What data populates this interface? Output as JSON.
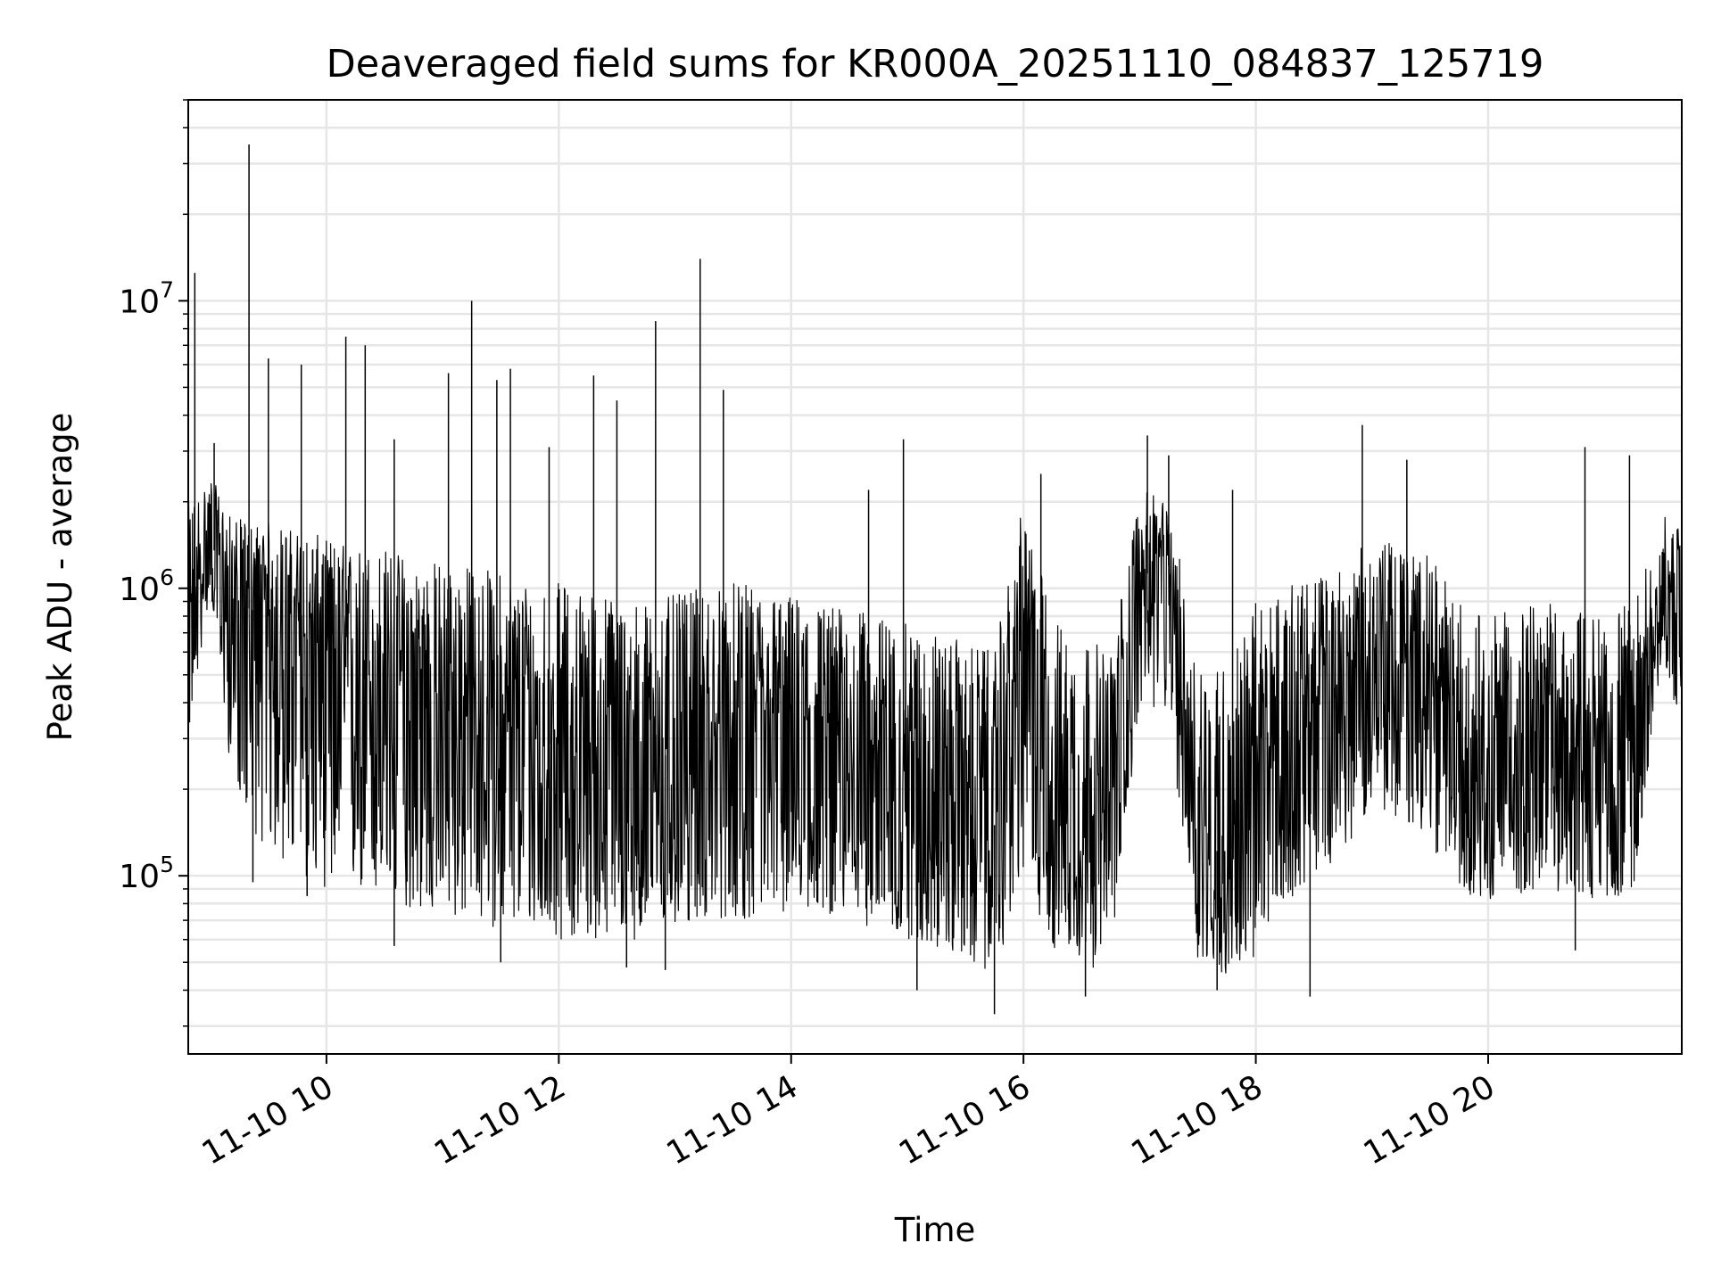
{
  "chart_data": {
    "type": "line",
    "title": "Deaveraged field sums for KR000A_20251110_084837_125719",
    "xlabel": "Time",
    "ylabel": "Peak ADU - average",
    "x_axis": {
      "type": "time",
      "range": [
        "2025-11-10 08:48:37",
        "2025-11-10 21:40:00"
      ],
      "ticks": [
        {
          "value": "2025-11-10 10:00",
          "label": "11-10 10"
        },
        {
          "value": "2025-11-10 12:00",
          "label": "11-10 12"
        },
        {
          "value": "2025-11-10 14:00",
          "label": "11-10 14"
        },
        {
          "value": "2025-11-10 16:00",
          "label": "11-10 16"
        },
        {
          "value": "2025-11-10 18:00",
          "label": "11-10 18"
        },
        {
          "value": "2025-11-10 20:00",
          "label": "11-10 20"
        }
      ]
    },
    "y_axis": {
      "scale": "log",
      "range": [
        24000,
        50000000
      ],
      "ticks": [
        {
          "value": 100000,
          "base": "10",
          "exp": "5"
        },
        {
          "value": 1000000,
          "base": "10",
          "exp": "6"
        },
        {
          "value": 10000000,
          "base": "10",
          "exp": "7"
        }
      ]
    },
    "grid": true,
    "line_color": "#000000",
    "grid_color": "#e6e6e6",
    "series": [
      {
        "x": [
          "2025-11-10 08:48",
          "2025-11-10 09:00",
          "2025-11-10 09:10",
          "2025-11-10 09:20",
          "2025-11-10 09:30",
          "2025-11-10 09:45",
          "2025-11-10 10:00",
          "2025-11-10 10:15",
          "2025-11-10 10:30",
          "2025-11-10 10:45",
          "2025-11-10 11:00",
          "2025-11-10 11:15",
          "2025-11-10 11:30",
          "2025-11-10 11:45",
          "2025-11-10 12:00",
          "2025-11-10 12:15",
          "2025-11-10 12:30",
          "2025-11-10 12:45",
          "2025-11-10 13:00",
          "2025-11-10 13:15",
          "2025-11-10 13:30",
          "2025-11-10 13:45",
          "2025-11-10 14:00",
          "2025-11-10 14:15",
          "2025-11-10 14:30",
          "2025-11-10 14:45",
          "2025-11-10 15:00",
          "2025-11-10 15:15",
          "2025-11-10 15:30",
          "2025-11-10 15:45",
          "2025-11-10 16:00",
          "2025-11-10 16:15",
          "2025-11-10 16:30",
          "2025-11-10 16:45",
          "2025-11-10 17:00",
          "2025-11-10 17:15",
          "2025-11-10 17:30",
          "2025-11-10 17:45",
          "2025-11-10 18:00",
          "2025-11-10 18:15",
          "2025-11-10 18:30",
          "2025-11-10 18:45",
          "2025-11-10 19:00",
          "2025-11-10 19:15",
          "2025-11-10 19:30",
          "2025-11-10 19:45",
          "2025-11-10 20:00",
          "2025-11-10 20:15",
          "2025-11-10 20:30",
          "2025-11-10 20:45",
          "2025-11-10 21:00",
          "2025-11-10 21:15",
          "2025-11-10 21:30",
          "2025-11-10 21:40"
        ],
        "median": [
          600000,
          1500000,
          900000,
          850000,
          800000,
          700000,
          600000,
          500000,
          450000,
          400000,
          380000,
          350000,
          330000,
          300000,
          280000,
          270000,
          260000,
          250000,
          270000,
          280000,
          300000,
          320000,
          330000,
          300000,
          280000,
          260000,
          250000,
          230000,
          200000,
          150000,
          700000,
          250000,
          180000,
          150000,
          1100000,
          1200000,
          150000,
          110000,
          200000,
          300000,
          350000,
          400000,
          550000,
          500000,
          450000,
          300000,
          250000,
          280000,
          300000,
          280000,
          260000,
          300000,
          1000000,
          900000
        ],
        "low": [
          280000,
          1000000,
          250000,
          150000,
          120000,
          100000,
          90000,
          85000,
          80000,
          75000,
          70000,
          70000,
          65000,
          65000,
          60000,
          60000,
          60000,
          60000,
          65000,
          70000,
          70000,
          70000,
          75000,
          75000,
          70000,
          65000,
          60000,
          55000,
          50000,
          45000,
          100000,
          55000,
          50000,
          45000,
          400000,
          350000,
          50000,
          45000,
          50000,
          80000,
          100000,
          120000,
          180000,
          150000,
          130000,
          90000,
          80000,
          85000,
          90000,
          85000,
          80000,
          90000,
          600000,
          300000
        ],
        "high": [
          2000000,
          2500000,
          1800000,
          1700000,
          1700000,
          1600000,
          1500000,
          1400000,
          1400000,
          1300000,
          1250000,
          1200000,
          1150000,
          1100000,
          1050000,
          1000000,
          950000,
          900000,
          950000,
          1000000,
          1050000,
          1000000,
          950000,
          900000,
          850000,
          800000,
          750000,
          700000,
          650000,
          600000,
          2000000,
          800000,
          700000,
          600000,
          2200000,
          2000000,
          600000,
          550000,
          900000,
          1000000,
          1100000,
          1200000,
          1500000,
          1400000,
          1300000,
          900000,
          800000,
          850000,
          900000,
          850000,
          800000,
          900000,
          1800000,
          1600000
        ]
      }
    ],
    "spikes": [
      {
        "x": "2025-11-10 08:52",
        "y": 12500000
      },
      {
        "x": "2025-11-10 09:02",
        "y": 3200000
      },
      {
        "x": "2025-11-10 09:20",
        "y": 35000000
      },
      {
        "x": "2025-11-10 09:30",
        "y": 6300000
      },
      {
        "x": "2025-11-10 09:47",
        "y": 6000000
      },
      {
        "x": "2025-11-10 10:10",
        "y": 7500000
      },
      {
        "x": "2025-11-10 10:20",
        "y": 7000000
      },
      {
        "x": "2025-11-10 10:35",
        "y": 3300000
      },
      {
        "x": "2025-11-10 11:03",
        "y": 5600000
      },
      {
        "x": "2025-11-10 11:15",
        "y": 10000000
      },
      {
        "x": "2025-11-10 11:28",
        "y": 5300000
      },
      {
        "x": "2025-11-10 11:35",
        "y": 5800000
      },
      {
        "x": "2025-11-10 11:55",
        "y": 3100000
      },
      {
        "x": "2025-11-10 12:18",
        "y": 5500000
      },
      {
        "x": "2025-11-10 12:30",
        "y": 4500000
      },
      {
        "x": "2025-11-10 12:50",
        "y": 8500000
      },
      {
        "x": "2025-11-10 13:13",
        "y": 14000000
      },
      {
        "x": "2025-11-10 13:25",
        "y": 4900000
      },
      {
        "x": "2025-11-10 14:40",
        "y": 2200000
      },
      {
        "x": "2025-11-10 14:58",
        "y": 3300000
      },
      {
        "x": "2025-11-10 16:09",
        "y": 2500000
      },
      {
        "x": "2025-11-10 17:04",
        "y": 3400000
      },
      {
        "x": "2025-11-10 17:15",
        "y": 2900000
      },
      {
        "x": "2025-11-10 17:48",
        "y": 2200000
      },
      {
        "x": "2025-11-10 18:55",
        "y": 3700000
      },
      {
        "x": "2025-11-10 19:18",
        "y": 2800000
      },
      {
        "x": "2025-11-10 20:50",
        "y": 3100000
      },
      {
        "x": "2025-11-10 21:13",
        "y": 2900000
      }
    ],
    "dips": [
      {
        "x": "2025-11-10 09:22",
        "y": 95000
      },
      {
        "x": "2025-11-10 09:50",
        "y": 85000
      },
      {
        "x": "2025-11-10 10:35",
        "y": 57000
      },
      {
        "x": "2025-11-10 11:30",
        "y": 50000
      },
      {
        "x": "2025-11-10 12:35",
        "y": 48000
      },
      {
        "x": "2025-11-10 12:55",
        "y": 47000
      },
      {
        "x": "2025-11-10 15:05",
        "y": 40000
      },
      {
        "x": "2025-11-10 15:45",
        "y": 33000
      },
      {
        "x": "2025-11-10 16:32",
        "y": 38000
      },
      {
        "x": "2025-11-10 17:40",
        "y": 40000
      },
      {
        "x": "2025-11-10 18:28",
        "y": 38000
      },
      {
        "x": "2025-11-10 20:45",
        "y": 55000
      }
    ]
  }
}
